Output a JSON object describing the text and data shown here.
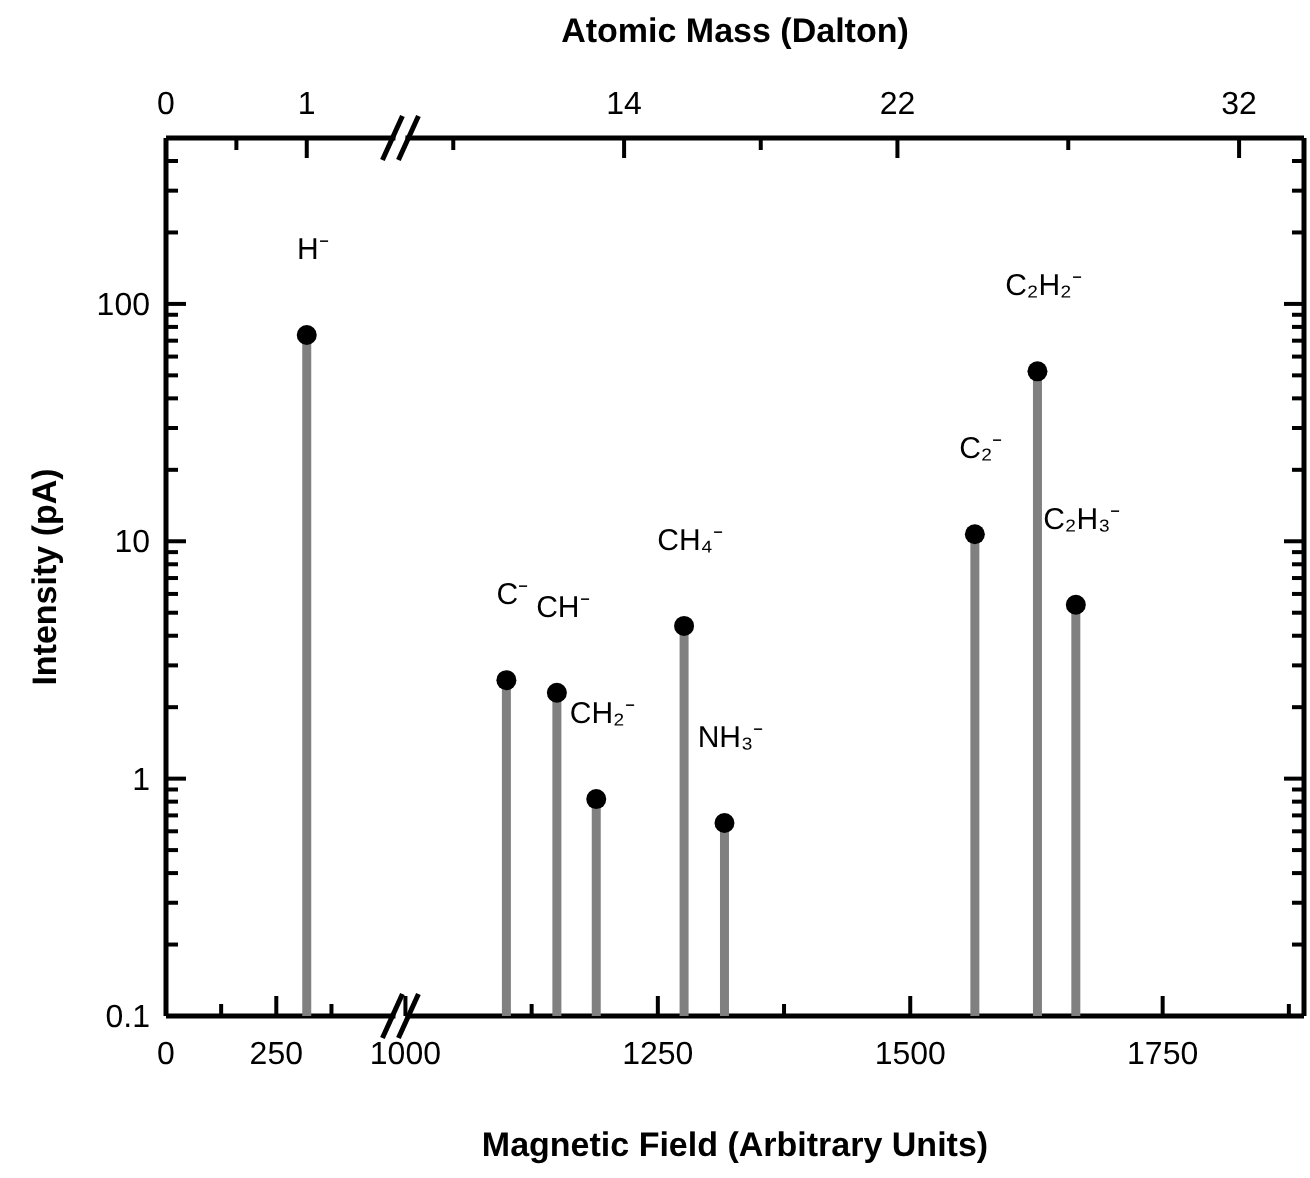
{
  "chart_data": [
    {
      "type": "lollipop",
      "ylabel": "Intensity (pA)",
      "log": "y",
      "marker": "circle",
      "x": [
        319
      ],
      "series": [
        {
          "color": "#000000",
          "values": [
            74
          ]
        }
      ],
      "xlim": [
        0,
        520
      ],
      "xticks": [
        0,
        {
          "value": 125,
          "label": null
        },
        250,
        {
          "value": 375,
          "label": null
        }
      ],
      "ylim": [
        0.1,
        500
      ],
      "yticks": [
        0.1,
        {
          "value": 0.2,
          "label": null
        },
        {
          "value": 0.3,
          "label": null
        },
        {
          "value": 0.4,
          "label": null
        },
        {
          "value": 0.5,
          "label": null
        },
        {
          "value": 0.6,
          "label": null
        },
        {
          "value": 0.7,
          "label": null
        },
        {
          "value": 0.8,
          "label": null
        },
        {
          "value": 0.9,
          "label": null
        },
        1,
        {
          "value": 2,
          "label": null
        },
        {
          "value": 3,
          "label": null
        },
        {
          "value": 4,
          "label": null
        },
        {
          "value": 5,
          "label": null
        },
        {
          "value": 6,
          "label": null
        },
        {
          "value": 7,
          "label": null
        },
        {
          "value": 8,
          "label": null
        },
        {
          "value": 9,
          "label": null
        },
        10,
        {
          "value": 20,
          "label": null
        },
        {
          "value": 30,
          "label": null
        },
        {
          "value": 40,
          "label": null
        },
        {
          "value": 50,
          "label": null
        },
        {
          "value": 60,
          "label": null
        },
        {
          "value": 70,
          "label": null
        },
        {
          "value": 80,
          "label": null
        },
        {
          "value": 90,
          "label": null
        },
        100,
        {
          "value": 200,
          "label": null
        },
        {
          "value": 300,
          "label": null
        },
        {
          "value": 400,
          "label": null
        }
      ],
      "x2lim": [
        0,
        1.63
      ],
      "x2ticks": [
        0,
        {
          "value": 0.5,
          "label": null
        },
        1
      ],
      "annotations": [
        {
          "text": "H⁻",
          "x": 319,
          "y": 74
        }
      ]
    },
    {
      "type": "lollipop",
      "xlabel": "Magnetic Field (Arbitrary Units)",
      "x2label": "Atomic Mass (Dalton)",
      "log": "y",
      "marker": "circle",
      "tick_labels": "x",
      "x": [
        1100,
        1150,
        1189,
        1276,
        1316,
        1564,
        1626,
        1664
      ],
      "series": [
        {
          "color": "#000000",
          "values": [
            2.6,
            2.3,
            0.82,
            4.4,
            0.65,
            10.7,
            52,
            5.4
          ]
        }
      ],
      "xlim": [
        1000,
        1890
      ],
      "xticks": [
        1000,
        {
          "value": 1125,
          "label": null
        },
        1250,
        {
          "value": 1375,
          "label": null
        },
        1500,
        {
          "value": 1625,
          "label": null
        },
        1750,
        {
          "value": 1875,
          "label": null
        }
      ],
      "ylim": [
        0.1,
        500
      ],
      "yticks": [
        0.1,
        {
          "value": 0.2,
          "label": null
        },
        {
          "value": 0.3,
          "label": null
        },
        {
          "value": 0.4,
          "label": null
        },
        {
          "value": 0.5,
          "label": null
        },
        {
          "value": 0.6,
          "label": null
        },
        {
          "value": 0.7,
          "label": null
        },
        {
          "value": 0.8,
          "label": null
        },
        {
          "value": 0.9,
          "label": null
        },
        1,
        {
          "value": 2,
          "label": null
        },
        {
          "value": 3,
          "label": null
        },
        {
          "value": 4,
          "label": null
        },
        {
          "value": 5,
          "label": null
        },
        {
          "value": 6,
          "label": null
        },
        {
          "value": 7,
          "label": null
        },
        {
          "value": 8,
          "label": null
        },
        {
          "value": 9,
          "label": null
        },
        10,
        {
          "value": 20,
          "label": null
        },
        {
          "value": 30,
          "label": null
        },
        {
          "value": 40,
          "label": null
        },
        {
          "value": 50,
          "label": null
        },
        {
          "value": 60,
          "label": null
        },
        {
          "value": 70,
          "label": null
        },
        {
          "value": 80,
          "label": null
        },
        {
          "value": 90,
          "label": null
        },
        100,
        {
          "value": 200,
          "label": null
        },
        {
          "value": 300,
          "label": null
        },
        {
          "value": 400,
          "label": null
        }
      ],
      "x2lim": [
        7.6,
        33.9
      ],
      "x2ticks": [
        {
          "value": 9,
          "label": null
        },
        14,
        {
          "value": 18,
          "label": null
        },
        22,
        {
          "value": 27,
          "label": null
        },
        32
      ],
      "annotations": [
        {
          "text": "C⁻",
          "x": 1100,
          "y": 2.6
        },
        {
          "text": "CH⁻",
          "x": 1150,
          "y": 2.3
        },
        {
          "text": "CH₂⁻",
          "x": 1189,
          "y": 0.82
        },
        {
          "text": "CH₄⁻",
          "x": 1276,
          "y": 4.4
        },
        {
          "text": "NH₃⁻",
          "x": 1316,
          "y": 0.65
        },
        {
          "text": "C₂⁻",
          "x": 1564,
          "y": 10.7
        },
        {
          "text": "C₂H₂⁻",
          "x": 1626,
          "y": 52
        },
        {
          "text": "C₂H₃⁻",
          "x": 1664,
          "y": 5.4
        }
      ]
    }
  ]
}
